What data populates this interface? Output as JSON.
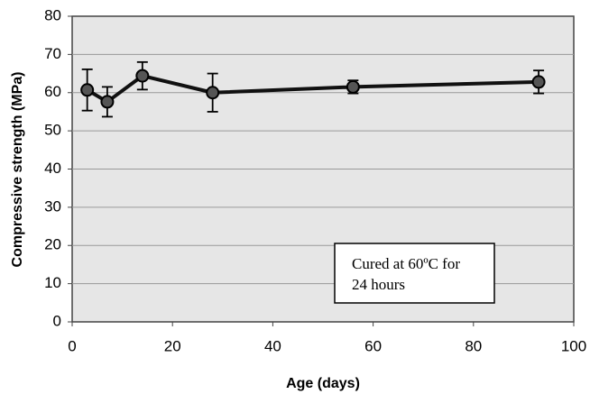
{
  "chart_data": {
    "type": "line",
    "x_label": "Age (days)",
    "y_label": "Compressive strength (MPa)",
    "x": [
      3,
      7,
      14,
      28,
      56,
      93
    ],
    "values": [
      60.7,
      57.6,
      64.4,
      60,
      61.5,
      62.8
    ],
    "errors": [
      5.4,
      3.9,
      3.6,
      5,
      1.7,
      3
    ],
    "color": "#111111",
    "marker_color": "#555555",
    "xlim": [
      0,
      100
    ],
    "xticks": [
      0,
      20,
      40,
      60,
      80,
      100
    ],
    "ylim": [
      0,
      80
    ],
    "yticks": [
      0,
      10,
      20,
      30,
      40,
      50,
      60,
      70,
      80
    ],
    "grid": true,
    "annotation": [
      "Cured at 60ºC for",
      "24 hours"
    ]
  }
}
